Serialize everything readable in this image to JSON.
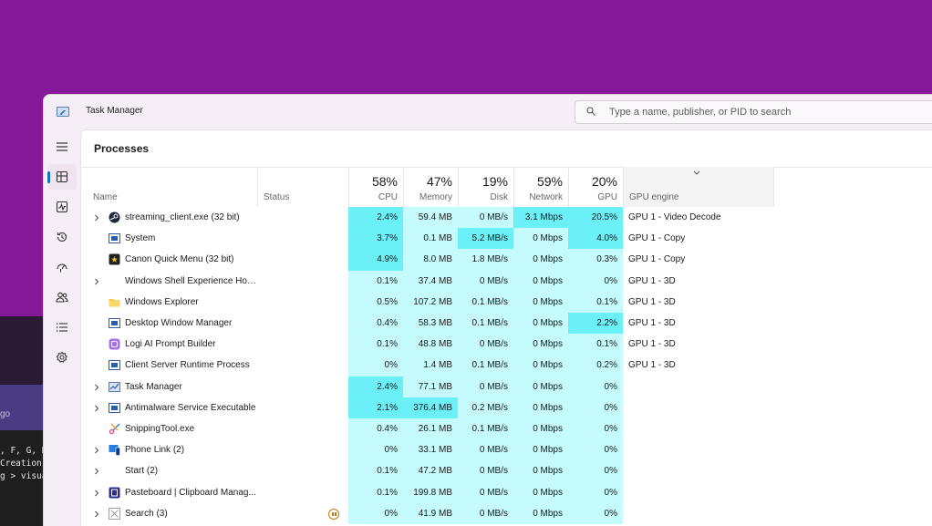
{
  "window": {
    "title": "Task Manager",
    "search_placeholder": "Type a name, publisher, or PID to search",
    "page_title": "Processes"
  },
  "nav": [
    "hamburger-icon",
    "processes-icon",
    "performance-icon",
    "app-history-icon",
    "startup-apps-icon",
    "users-icon",
    "details-icon",
    "services-icon"
  ],
  "columns": {
    "name": "Name",
    "status": "Status",
    "cpu": {
      "pct": "58%",
      "label": "CPU"
    },
    "memory": {
      "pct": "47%",
      "label": "Memory"
    },
    "disk": {
      "pct": "19%",
      "label": "Disk"
    },
    "network": {
      "pct": "59%",
      "label": "Network"
    },
    "gpu": {
      "pct": "20%",
      "label": "GPU"
    },
    "gpu_engine": "GPU engine"
  },
  "colors": {
    "heat_low": "#c6fbfe",
    "heat_mid": "#8ff5fb",
    "heat_high": "#6cf0f8",
    "accent": "#1070c8"
  },
  "processes": [
    {
      "name": "streaming_client.exe (32 bit)",
      "expandable": true,
      "icon": "steam-icon",
      "cpu": "2.4%",
      "memory": "59.4 MB",
      "disk": "0 MB/s",
      "network": "3.1 Mbps",
      "gpu": "20.5%",
      "gpu_engine": "GPU 1 - Video Decode"
    },
    {
      "name": "System",
      "expandable": false,
      "icon": "system-icon",
      "cpu": "3.7%",
      "memory": "0.1 MB",
      "disk": "5.2 MB/s",
      "network": "0 Mbps",
      "gpu": "4.0%",
      "gpu_engine": "GPU 1 - Copy"
    },
    {
      "name": "Canon Quick Menu (32 bit)",
      "expandable": false,
      "icon": "canon-icon",
      "cpu": "4.9%",
      "memory": "8.0 MB",
      "disk": "1.8 MB/s",
      "network": "0 Mbps",
      "gpu": "0.3%",
      "gpu_engine": "GPU 1 - Copy"
    },
    {
      "name": "Windows Shell Experience Hos...",
      "expandable": true,
      "icon": "",
      "cpu": "0.1%",
      "memory": "37.4 MB",
      "disk": "0 MB/s",
      "network": "0 Mbps",
      "gpu": "0%",
      "gpu_engine": "GPU 1 - 3D"
    },
    {
      "name": "Windows Explorer",
      "expandable": false,
      "icon": "folder-icon",
      "cpu": "0.5%",
      "memory": "107.2 MB",
      "disk": "0.1 MB/s",
      "network": "0 Mbps",
      "gpu": "0.1%",
      "gpu_engine": "GPU 1 - 3D"
    },
    {
      "name": "Desktop Window Manager",
      "expandable": false,
      "icon": "system-icon",
      "cpu": "0.4%",
      "memory": "58.3 MB",
      "disk": "0.1 MB/s",
      "network": "0 Mbps",
      "gpu": "2.2%",
      "gpu_engine": "GPU 1 - 3D"
    },
    {
      "name": "Logi AI Prompt Builder",
      "expandable": false,
      "icon": "logi-icon",
      "cpu": "0.1%",
      "memory": "48.8 MB",
      "disk": "0 MB/s",
      "network": "0 Mbps",
      "gpu": "0.1%",
      "gpu_engine": "GPU 1 - 3D"
    },
    {
      "name": "Client Server Runtime Process",
      "expandable": false,
      "icon": "system-icon",
      "cpu": "0%",
      "memory": "1.4 MB",
      "disk": "0.1 MB/s",
      "network": "0 Mbps",
      "gpu": "0.2%",
      "gpu_engine": "GPU 1 - 3D"
    },
    {
      "name": "Task Manager",
      "expandable": true,
      "icon": "task-manager-icon",
      "cpu": "2.4%",
      "memory": "77.1 MB",
      "disk": "0 MB/s",
      "network": "0 Mbps",
      "gpu": "0%",
      "gpu_engine": ""
    },
    {
      "name": "Antimalware Service Executable",
      "expandable": true,
      "icon": "system-icon",
      "cpu": "2.1%",
      "memory": "376.4 MB",
      "disk": "0.2 MB/s",
      "network": "0 Mbps",
      "gpu": "0%",
      "gpu_engine": ""
    },
    {
      "name": "SnippingTool.exe",
      "expandable": false,
      "icon": "snipping-icon",
      "cpu": "0.4%",
      "memory": "26.1 MB",
      "disk": "0.1 MB/s",
      "network": "0 Mbps",
      "gpu": "0%",
      "gpu_engine": ""
    },
    {
      "name": "Phone Link (2)",
      "expandable": true,
      "icon": "phone-link-icon",
      "cpu": "0%",
      "memory": "33.1 MB",
      "disk": "0 MB/s",
      "network": "0 Mbps",
      "gpu": "0%",
      "gpu_engine": ""
    },
    {
      "name": "Start (2)",
      "expandable": true,
      "icon": "",
      "cpu": "0.1%",
      "memory": "47.2 MB",
      "disk": "0 MB/s",
      "network": "0 Mbps",
      "gpu": "0%",
      "gpu_engine": ""
    },
    {
      "name": "Pasteboard | Clipboard Manag...",
      "expandable": true,
      "icon": "pasteboard-icon",
      "cpu": "0.1%",
      "memory": "199.8 MB",
      "disk": "0 MB/s",
      "network": "0 Mbps",
      "gpu": "0%",
      "gpu_engine": ""
    },
    {
      "name": "Search (3)",
      "expandable": true,
      "icon": "search-app-icon",
      "status": "suspended",
      "cpu": "0%",
      "memory": "41.9 MB",
      "disk": "0 MB/s",
      "network": "0 Mbps",
      "gpu": "0%",
      "gpu_engine": ""
    }
  ],
  "background_terminal": {
    "text": ", F, G, H\nCreation\ng > visua",
    "band_text": "go"
  }
}
